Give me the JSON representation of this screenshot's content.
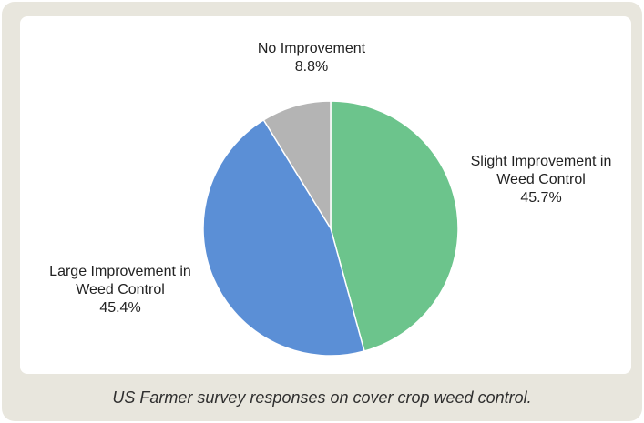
{
  "chart_data": {
    "type": "pie",
    "slices": [
      {
        "label_lines": [
          "Slight Improvement in",
          "Weed Control"
        ],
        "percent_label": "45.7%",
        "value": 45.7,
        "color": "#6cc48c"
      },
      {
        "label_lines": [
          "Large Improvement in",
          "Weed Control"
        ],
        "percent_label": "45.4%",
        "value": 45.4,
        "color": "#5b8fd6"
      },
      {
        "label_lines": [
          "No Improvement"
        ],
        "percent_label": "8.8%",
        "value": 8.8,
        "color": "#b4b4b4"
      }
    ],
    "start": "12 o'clock",
    "direction": "clockwise"
  },
  "caption": "US Farmer survey responses on cover crop weed control."
}
